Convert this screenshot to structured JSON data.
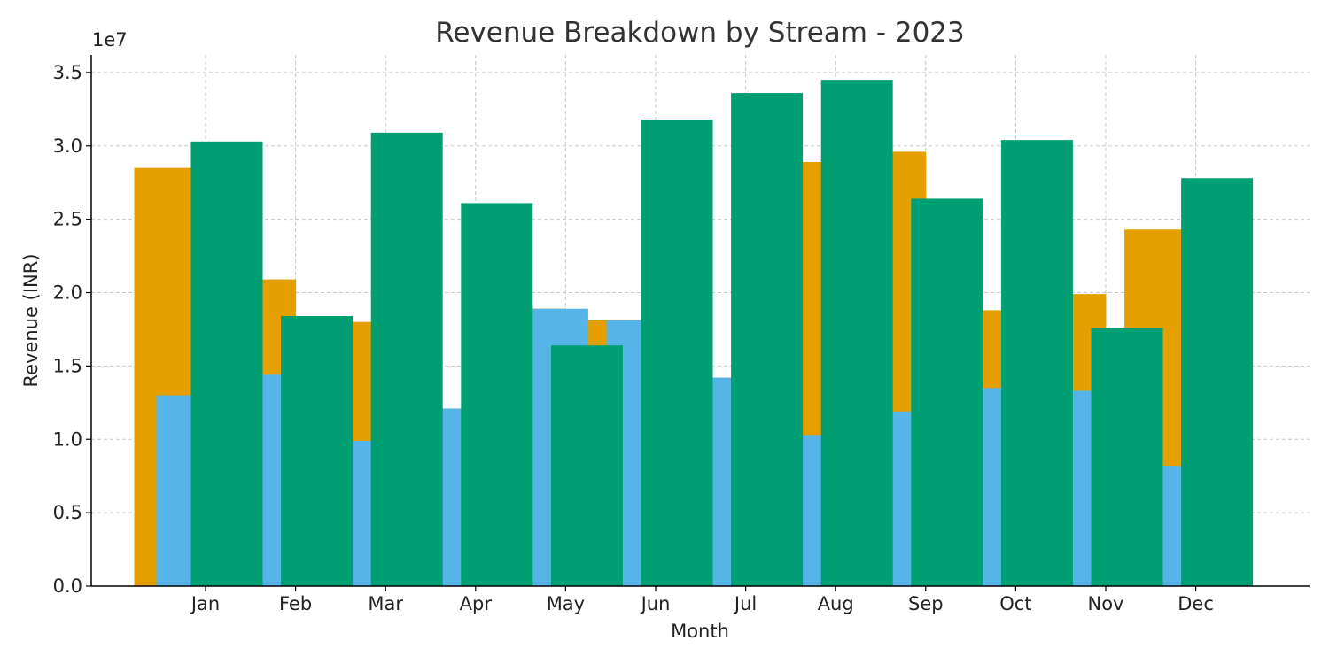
{
  "chart_data": {
    "type": "bar",
    "title": "Revenue Breakdown by Stream - 2023",
    "xlabel": "Month",
    "ylabel": "Revenue (INR)",
    "y_scale_label": "1e7",
    "y_scale_factor": 10000000,
    "ylim": [
      0,
      36200000
    ],
    "yticks": [
      0,
      5000000,
      10000000,
      15000000,
      20000000,
      25000000,
      30000000,
      35000000
    ],
    "ytick_labels": [
      "0.0",
      "0.5",
      "1.0",
      "1.5",
      "2.0",
      "2.5",
      "3.0",
      "3.5"
    ],
    "categories": [
      "Jan",
      "Feb",
      "Mar",
      "Apr",
      "May",
      "Jun",
      "Jul",
      "Aug",
      "Sep",
      "Oct",
      "Nov",
      "Dec"
    ],
    "grid": true,
    "series": [
      {
        "color": "#E69F00",
        "values": [
          28500000,
          20900000,
          18000000,
          12000000,
          18900000,
          18100000,
          14200000,
          28900000,
          29600000,
          18800000,
          19900000,
          24300000
        ]
      },
      {
        "color": "#56B4E9",
        "values": [
          13000000,
          14400000,
          9900000,
          12100000,
          18900000,
          18100000,
          14200000,
          10300000,
          11900000,
          13500000,
          13300000,
          8200000
        ]
      },
      {
        "color": "#009E73",
        "values": [
          30300000,
          18400000,
          30900000,
          26100000,
          16400000,
          31800000,
          33600000,
          34500000,
          26400000,
          30400000,
          17600000,
          27800000
        ]
      }
    ]
  }
}
